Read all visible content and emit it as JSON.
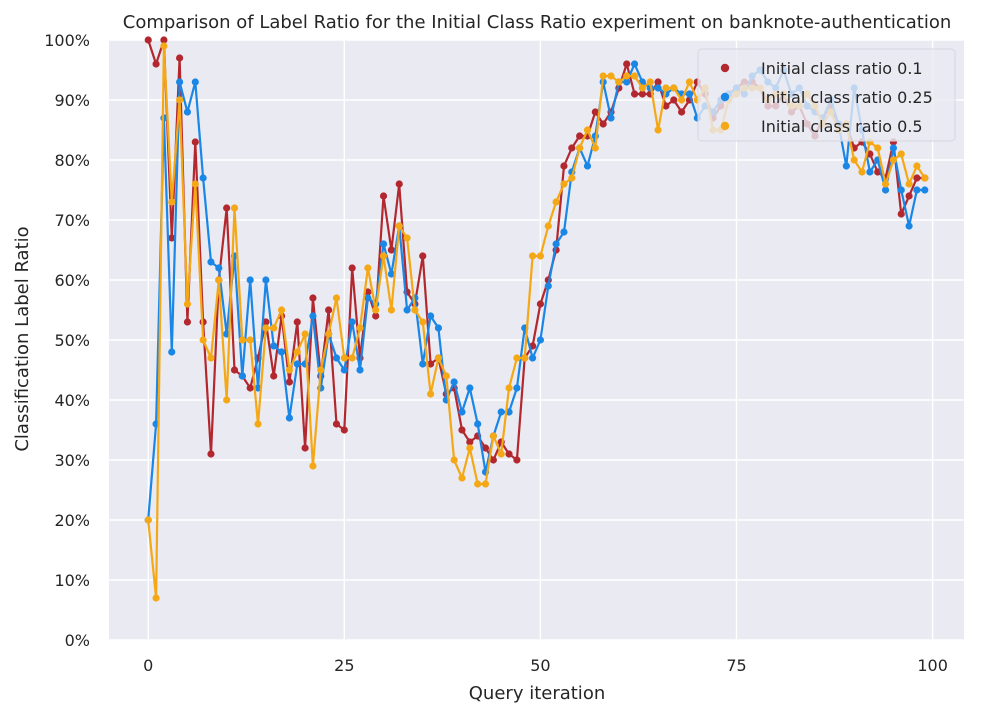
{
  "chart_data": {
    "type": "line",
    "title": "Comparison of Label Ratio for the Initial Class Ratio experiment on banknote-authentication",
    "xlabel": "Query iteration",
    "ylabel": "Classification Label Ratio",
    "xlim": [
      -5,
      104
    ],
    "ylim": [
      0,
      100
    ],
    "xticks": [
      0,
      25,
      50,
      75,
      100
    ],
    "xtick_labels": [
      "0",
      "25",
      "50",
      "75",
      "100"
    ],
    "yticks": [
      0,
      10,
      20,
      30,
      40,
      50,
      60,
      70,
      80,
      90,
      100
    ],
    "ytick_labels": [
      "0%",
      "10%",
      "20%",
      "30%",
      "40%",
      "50%",
      "60%",
      "70%",
      "80%",
      "90%",
      "100%"
    ],
    "grid": true,
    "legend_position": "top-right",
    "x": [
      0,
      1,
      2,
      3,
      4,
      5,
      6,
      7,
      8,
      9,
      10,
      11,
      12,
      13,
      14,
      15,
      16,
      17,
      18,
      19,
      20,
      21,
      22,
      23,
      24,
      25,
      26,
      27,
      28,
      29,
      30,
      31,
      32,
      33,
      34,
      35,
      36,
      37,
      38,
      39,
      40,
      41,
      42,
      43,
      44,
      45,
      46,
      47,
      48,
      49,
      50,
      51,
      52,
      53,
      54,
      55,
      56,
      57,
      58,
      59,
      60,
      61,
      62,
      63,
      64,
      65,
      66,
      67,
      68,
      69,
      70,
      71,
      72,
      73,
      74,
      75,
      76,
      77,
      78,
      79,
      80,
      81,
      82,
      83,
      84,
      85,
      86,
      87,
      88,
      89,
      90,
      91,
      92,
      93,
      94,
      95,
      96,
      97,
      98,
      99
    ],
    "series": [
      {
        "name": "Initial class ratio 0.1",
        "color": "#b2282e",
        "values": [
          100,
          96,
          100,
          67,
          97,
          53,
          83,
          53,
          31,
          60,
          72,
          45,
          44,
          42,
          47,
          53,
          44,
          54,
          43,
          53,
          32,
          57,
          44,
          55,
          36,
          35,
          62,
          47,
          58,
          54,
          74,
          65,
          76,
          58,
          56,
          64,
          46,
          47,
          41,
          42,
          35,
          33,
          34,
          32,
          30,
          33,
          31,
          30,
          47,
          49,
          56,
          60,
          65,
          79,
          82,
          84,
          84,
          88,
          86,
          88,
          92,
          96,
          91,
          91,
          91,
          93,
          89,
          90,
          88,
          90,
          93,
          91,
          87,
          89,
          91,
          92,
          93,
          93,
          92,
          89,
          89,
          91,
          88,
          89,
          86,
          84,
          87,
          89,
          86,
          86,
          82,
          83,
          81,
          78,
          77,
          83,
          71,
          74,
          77,
          77
        ]
      },
      {
        "name": "Initial class ratio 0.25",
        "color": "#1a86e6",
        "values": [
          20,
          36,
          87,
          48,
          93,
          88,
          93,
          77,
          63,
          62,
          51,
          64,
          44,
          60,
          42,
          60,
          49,
          48,
          37,
          46,
          46,
          54,
          42,
          51,
          47,
          45,
          53,
          45,
          57,
          56,
          66,
          61,
          69,
          55,
          57,
          46,
          54,
          52,
          40,
          43,
          38,
          42,
          36,
          28,
          34,
          38,
          38,
          42,
          52,
          47,
          50,
          59,
          66,
          68,
          78,
          82,
          79,
          84,
          93,
          87,
          93,
          93,
          96,
          93,
          92,
          92,
          91,
          92,
          91,
          91,
          87,
          89,
          88,
          90,
          91,
          92,
          91,
          94,
          95,
          93,
          92,
          95,
          91,
          92,
          89,
          88,
          87,
          90,
          86,
          79,
          92,
          85,
          78,
          80,
          75,
          82,
          75,
          69,
          75,
          75
        ]
      },
      {
        "name": "Initial class ratio 0.5",
        "color": "#f5a815",
        "values": [
          20,
          7,
          99,
          73,
          90,
          56,
          76,
          50,
          47,
          60,
          40,
          72,
          50,
          50,
          36,
          52,
          52,
          55,
          45,
          48,
          51,
          29,
          45,
          51,
          57,
          47,
          47,
          52,
          62,
          55,
          64,
          55,
          69,
          67,
          55,
          53,
          41,
          47,
          44,
          30,
          27,
          32,
          26,
          26,
          34,
          31,
          42,
          47,
          47,
          64,
          64,
          69,
          73,
          76,
          77,
          82,
          85,
          82,
          94,
          94,
          93,
          94,
          94,
          92,
          93,
          85,
          92,
          92,
          90,
          93,
          90,
          92,
          85,
          85,
          90,
          91,
          92,
          92,
          92,
          90,
          91,
          91,
          89,
          89,
          91,
          89,
          86,
          88,
          85,
          86,
          80,
          78,
          83,
          82,
          76,
          80,
          81,
          76,
          79,
          77
        ]
      }
    ]
  }
}
